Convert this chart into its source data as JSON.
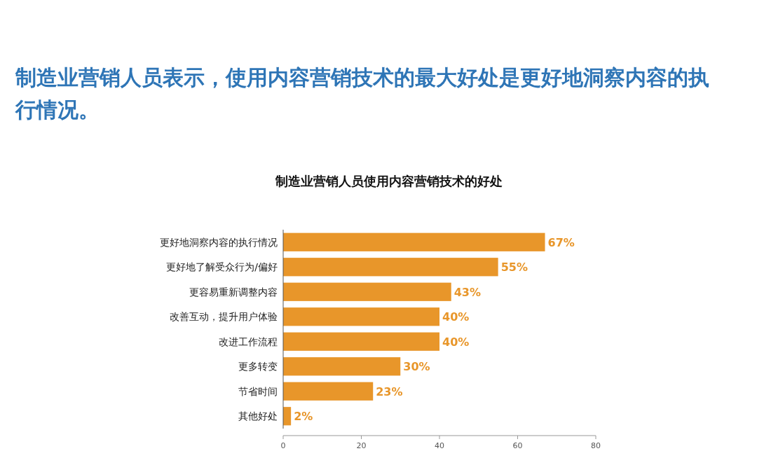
{
  "chart_data": {
    "type": "bar",
    "orientation": "horizontal",
    "title": "制造业营销人员表示，使用内容营销技术的最大好处是更好地洞察内容的执行情况。",
    "subtitle": "制造业营销人员使用内容营销技术的好处",
    "categories": [
      "更好地洞察内容的执行情况",
      "更好地了解受众行为/偏好",
      "更容易重新调整内容",
      "改善互动，提升用户体验",
      "改进工作流程",
      "更多转变",
      "节省时间",
      "其他好处"
    ],
    "values": [
      67,
      55,
      43,
      40,
      40,
      30,
      23,
      2
    ],
    "value_labels": [
      "67%",
      "55%",
      "43%",
      "40%",
      "40%",
      "30%",
      "23%",
      "2%"
    ],
    "color": "#e8962a",
    "xlim": [
      0,
      80
    ],
    "xticks": [
      0,
      20,
      40,
      60,
      80
    ],
    "grid": false
  }
}
